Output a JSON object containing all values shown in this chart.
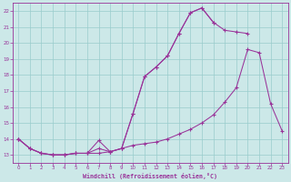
{
  "xlabel": "Windchill (Refroidissement éolien,°C)",
  "background_color": "#cce8e8",
  "grid_color": "#99cccc",
  "line_color": "#993399",
  "line1_x": [
    0,
    1,
    2,
    3,
    4,
    5,
    6,
    7,
    8,
    9,
    10,
    11,
    12,
    13,
    14,
    15,
    16,
    17,
    18,
    19,
    20
  ],
  "line1_y": [
    14.0,
    13.4,
    13.1,
    13.0,
    13.0,
    13.1,
    13.1,
    13.1,
    13.2,
    13.4,
    15.6,
    17.9,
    18.5,
    19.2,
    20.6,
    21.9,
    22.2,
    21.3,
    20.8,
    20.7,
    20.6
  ],
  "line2_x": [
    0,
    1,
    2,
    3,
    4,
    5,
    6,
    7,
    8,
    9,
    10,
    11,
    12,
    13,
    14,
    15,
    16,
    17
  ],
  "line2_y": [
    14.0,
    13.4,
    13.1,
    13.0,
    13.0,
    13.1,
    13.1,
    13.9,
    13.2,
    13.4,
    15.6,
    17.9,
    18.5,
    19.2,
    20.6,
    21.9,
    22.2,
    21.3
  ],
  "line3_x": [
    0,
    1,
    2,
    3,
    4,
    5,
    6,
    7,
    8,
    9,
    10,
    11,
    12,
    13,
    14,
    15,
    16,
    17,
    18,
    19,
    20,
    21,
    22,
    23
  ],
  "line3_y": [
    14.0,
    13.4,
    13.1,
    13.0,
    13.0,
    13.1,
    13.1,
    13.4,
    13.2,
    13.4,
    13.6,
    13.7,
    13.8,
    14.0,
    14.3,
    14.6,
    15.0,
    15.5,
    16.3,
    17.2,
    19.6,
    19.4,
    16.2,
    14.5
  ],
  "ylim": [
    12.5,
    22.5
  ],
  "xlim": [
    -0.5,
    23.5
  ],
  "yticks": [
    13,
    14,
    15,
    16,
    17,
    18,
    19,
    20,
    21,
    22
  ],
  "xticks": [
    0,
    1,
    2,
    3,
    4,
    5,
    6,
    7,
    8,
    9,
    10,
    11,
    12,
    13,
    14,
    15,
    16,
    17,
    18,
    19,
    20,
    21,
    22,
    23
  ]
}
